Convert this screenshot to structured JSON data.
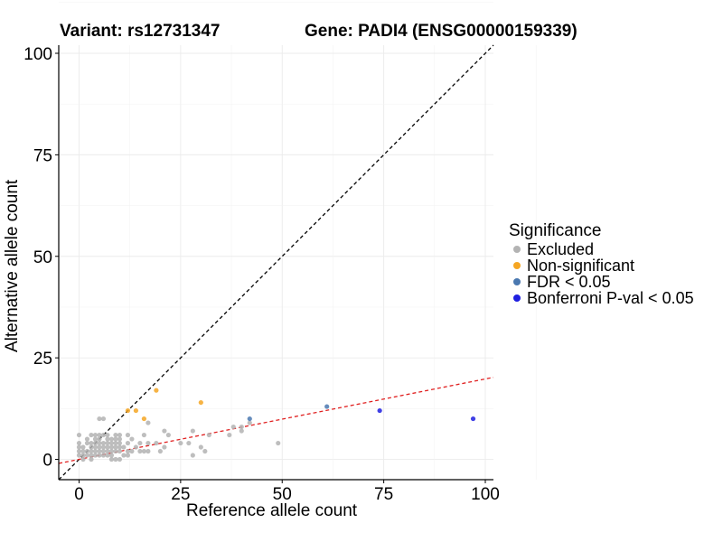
{
  "titles": {
    "variant": "Variant: rs12731347",
    "gene": "Gene: PADI4 (ENSG00000159339)"
  },
  "legend": {
    "title": "Significance",
    "items": [
      {
        "label": "Excluded",
        "color": "#b3b3b3"
      },
      {
        "label": "Non-significant",
        "color": "#f5a623"
      },
      {
        "label": "FDR < 0.05",
        "color": "#4a78b0"
      },
      {
        "label": "Bonferroni P-val < 0.05",
        "color": "#1f1fe0"
      }
    ]
  },
  "chart_data": {
    "type": "scatter",
    "xlabel": "Reference allele count",
    "ylabel": "Alternative allele count",
    "xlim": [
      -5,
      102
    ],
    "ylim": [
      -5,
      102
    ],
    "xticks": [
      0,
      25,
      50,
      75,
      100
    ],
    "yticks": [
      0,
      25,
      50,
      75,
      100
    ],
    "grid": true,
    "legend_position": "right",
    "reference_lines": [
      {
        "style": "dashed",
        "color": "#000000",
        "slope": 1,
        "intercept": 0
      },
      {
        "style": "dashed",
        "color": "#e02020",
        "slope": 0.198,
        "intercept": 0
      }
    ],
    "series": [
      {
        "name": "Excluded",
        "color": "#b3b3b3",
        "points": [
          [
            0,
            1
          ],
          [
            0,
            2
          ],
          [
            0,
            3
          ],
          [
            0,
            4
          ],
          [
            0,
            6
          ],
          [
            1,
            0
          ],
          [
            1,
            1
          ],
          [
            1,
            2
          ],
          [
            1,
            3
          ],
          [
            2,
            1
          ],
          [
            2,
            2
          ],
          [
            2,
            4
          ],
          [
            2,
            5
          ],
          [
            3,
            0
          ],
          [
            3,
            1
          ],
          [
            3,
            2
          ],
          [
            3,
            3
          ],
          [
            3,
            4
          ],
          [
            3,
            6
          ],
          [
            4,
            1
          ],
          [
            4,
            2
          ],
          [
            4,
            3
          ],
          [
            4,
            4
          ],
          [
            4,
            5
          ],
          [
            4,
            6
          ],
          [
            5,
            1
          ],
          [
            5,
            2
          ],
          [
            5,
            3
          ],
          [
            5,
            4
          ],
          [
            5,
            5
          ],
          [
            5,
            6
          ],
          [
            5,
            10
          ],
          [
            6,
            1
          ],
          [
            6,
            2
          ],
          [
            6,
            3
          ],
          [
            6,
            4
          ],
          [
            6,
            6
          ],
          [
            6,
            10
          ],
          [
            7,
            1
          ],
          [
            7,
            2
          ],
          [
            7,
            3
          ],
          [
            7,
            4
          ],
          [
            7,
            5
          ],
          [
            7,
            6
          ],
          [
            8,
            0
          ],
          [
            8,
            1
          ],
          [
            8,
            2
          ],
          [
            8,
            3
          ],
          [
            8,
            4
          ],
          [
            8,
            5
          ],
          [
            9,
            0
          ],
          [
            9,
            2
          ],
          [
            9,
            3
          ],
          [
            9,
            4
          ],
          [
            9,
            5
          ],
          [
            9,
            6
          ],
          [
            10,
            0
          ],
          [
            10,
            2
          ],
          [
            10,
            3
          ],
          [
            10,
            4
          ],
          [
            10,
            5
          ],
          [
            10,
            6
          ],
          [
            11,
            1
          ],
          [
            11,
            3
          ],
          [
            12,
            1
          ],
          [
            12,
            2
          ],
          [
            12,
            4
          ],
          [
            12,
            6
          ],
          [
            13,
            2
          ],
          [
            13,
            5
          ],
          [
            14,
            3
          ],
          [
            15,
            2
          ],
          [
            15,
            4
          ],
          [
            16,
            2
          ],
          [
            16,
            6
          ],
          [
            17,
            2
          ],
          [
            17,
            4
          ],
          [
            17,
            9
          ],
          [
            19,
            4
          ],
          [
            20,
            2
          ],
          [
            21,
            3
          ],
          [
            21,
            7
          ],
          [
            22,
            6
          ],
          [
            25,
            4
          ],
          [
            27,
            4
          ],
          [
            28,
            1
          ],
          [
            28,
            7
          ],
          [
            30,
            3
          ],
          [
            31,
            2
          ],
          [
            32,
            6
          ],
          [
            37,
            6
          ],
          [
            38,
            8
          ],
          [
            40,
            7
          ],
          [
            40,
            8
          ],
          [
            42,
            9
          ],
          [
            49,
            4
          ]
        ]
      },
      {
        "name": "Non-significant",
        "color": "#f5a623",
        "points": [
          [
            12,
            12
          ],
          [
            14,
            12
          ],
          [
            16,
            10
          ],
          [
            19,
            17
          ],
          [
            30,
            14
          ]
        ]
      },
      {
        "name": "FDR < 0.05",
        "color": "#4a78b0",
        "points": [
          [
            42,
            10
          ],
          [
            61,
            13
          ]
        ]
      },
      {
        "name": "Bonferroni P-val < 0.05",
        "color": "#1f1fe0",
        "points": [
          [
            74,
            12
          ],
          [
            97,
            10
          ]
        ]
      }
    ]
  }
}
